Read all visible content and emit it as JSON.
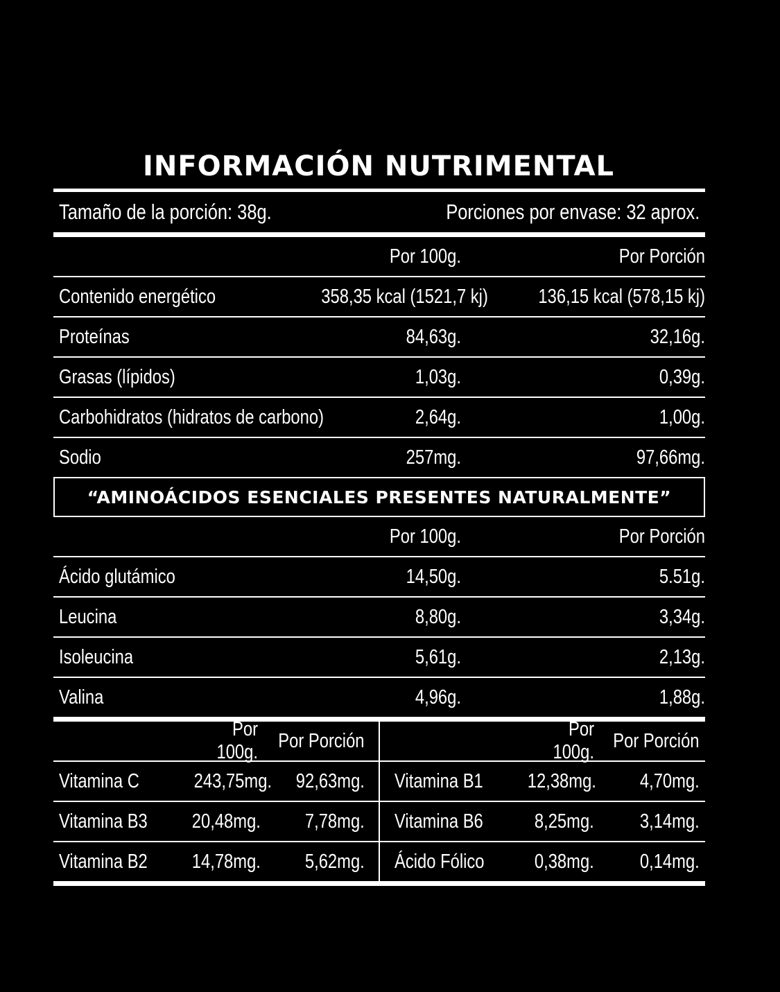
{
  "title": "INFORMACIÓN NUTRIMENTAL",
  "serving": {
    "size": "Tamaño de la porción: 38g.",
    "per_container": "Porciones por envase: 32 aprox."
  },
  "nutrition": {
    "headers": [
      "",
      "Por 100g.",
      "Por Porción"
    ],
    "rows": [
      [
        "Contenido energético",
        "358,35 kcal (1521,7 kj)",
        "136,15 kcal (578,15 kj)"
      ],
      [
        "Proteínas",
        "84,63g.",
        "32,16g."
      ],
      [
        "Grasas (lípidos)",
        "1,03g.",
        "0,39g."
      ],
      [
        "Carbohidratos (hidratos de carbono)",
        "2,64g.",
        "1,00g."
      ],
      [
        "Sodio",
        "257mg.",
        "97,66mg."
      ]
    ]
  },
  "amino": {
    "heading": "“AMINOÁCIDOS ESENCIALES PRESENTES NATURALMENTE”",
    "headers": [
      "",
      "Por 100g.",
      "Por Porción"
    ],
    "rows": [
      [
        "Ácido glutámico",
        "14,50g.",
        "5.51g."
      ],
      [
        "Leucina",
        "8,80g.",
        "3,34g."
      ],
      [
        "Isoleucina",
        "5,61g.",
        "2,13g."
      ],
      [
        "Valina",
        "4,96g.",
        "1,88g."
      ]
    ]
  },
  "vitamins": {
    "left_headers": [
      "",
      "Por 100g.",
      "Por Porción"
    ],
    "right_headers": [
      "",
      "Por 100g.",
      "Por Porción"
    ],
    "left_rows": [
      [
        "Vitamina C",
        "243,75mg.",
        "92,63mg."
      ],
      [
        "Vitamina B3",
        "20,48mg.",
        "7,78mg."
      ],
      [
        "Vitamina B2",
        "14,78mg.",
        "5,62mg."
      ]
    ],
    "right_rows": [
      [
        "Vitamina B1",
        "12,38mg.",
        "4,70mg."
      ],
      [
        "Vitamina B6",
        "8,25mg.",
        "3,14mg."
      ],
      [
        "Ácido Fólico",
        "0,38mg.",
        "0,14mg."
      ]
    ]
  }
}
